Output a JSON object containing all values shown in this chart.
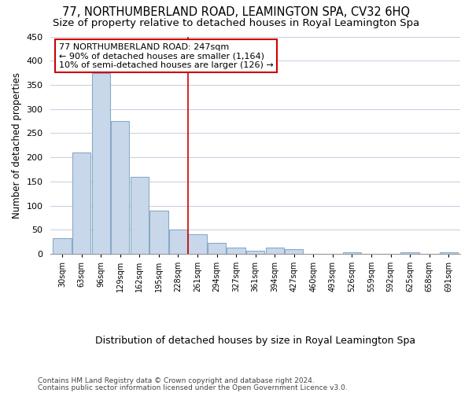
{
  "title": "77, NORTHUMBERLAND ROAD, LEAMINGTON SPA, CV32 6HQ",
  "subtitle": "Size of property relative to detached houses in Royal Leamington Spa",
  "xlabel": "Distribution of detached houses by size in Royal Leamington Spa",
  "ylabel": "Number of detached properties",
  "footer_line1": "Contains HM Land Registry data © Crown copyright and database right 2024.",
  "footer_line2": "Contains public sector information licensed under the Open Government Licence v3.0.",
  "bin_labels": [
    "30sqm",
    "63sqm",
    "96sqm",
    "129sqm",
    "162sqm",
    "195sqm",
    "228sqm",
    "261sqm",
    "294sqm",
    "327sqm",
    "361sqm",
    "394sqm",
    "427sqm",
    "460sqm",
    "493sqm",
    "526sqm",
    "559sqm",
    "592sqm",
    "625sqm",
    "658sqm",
    "691sqm"
  ],
  "bar_values": [
    33,
    210,
    375,
    275,
    160,
    90,
    50,
    40,
    23,
    13,
    7,
    13,
    10,
    0,
    0,
    4,
    0,
    0,
    3,
    0,
    3
  ],
  "bar_color": "#c8d8ea",
  "bar_edge_color": "#88aac8",
  "red_line_index": 6.5,
  "annotation_text": "77 NORTHUMBERLAND ROAD: 247sqm\n← 90% of detached houses are smaller (1,164)\n10% of semi-detached houses are larger (126) →",
  "annotation_box_color": "#ffffff",
  "annotation_box_edge": "#cc0000",
  "ylim": [
    0,
    450
  ],
  "yticks": [
    0,
    50,
    100,
    150,
    200,
    250,
    300,
    350,
    400,
    450
  ],
  "bg_color": "#ffffff",
  "plot_bg_color": "#ffffff",
  "grid_color": "#c8cce0",
  "title_fontsize": 10.5,
  "subtitle_fontsize": 9.5,
  "tick_fontsize": 8,
  "ylabel_fontsize": 8.5,
  "xlabel_fontsize": 9,
  "footer_fontsize": 6.5
}
